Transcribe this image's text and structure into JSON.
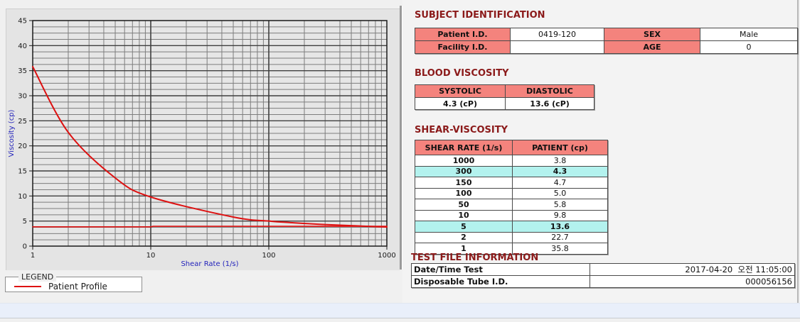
{
  "legend_box": {
    "title": "LEGEND",
    "series_label": "Patient Profile"
  },
  "sections": {
    "subject": {
      "title": "SUBJECT IDENTIFICATION",
      "cells": {
        "patient_label": "Patient I.D.",
        "patient_value": "0419-120",
        "facility_label": "Facility I.D.",
        "facility_value": "",
        "sex_label": "SEX",
        "sex_value": "Male",
        "age_label": "AGE",
        "age_value": "0"
      }
    },
    "blood": {
      "title": "BLOOD VISCOSITY",
      "systolic_label": "SYSTOLIC",
      "diastolic_label": "DIASTOLIC",
      "systolic_value": "4.3 (cP)",
      "diastolic_value": "13.6 (cP)"
    },
    "shear": {
      "title": "SHEAR-VISCOSITY",
      "col1": "SHEAR RATE (1/s)",
      "col2": "PATIENT (cp)",
      "rows": [
        {
          "rate": "1000",
          "patient": "3.8",
          "highlight": false
        },
        {
          "rate": "300",
          "patient": "4.3",
          "highlight": true
        },
        {
          "rate": "150",
          "patient": "4.7",
          "highlight": false
        },
        {
          "rate": "100",
          "patient": "5.0",
          "highlight": false
        },
        {
          "rate": "50",
          "patient": "5.8",
          "highlight": false
        },
        {
          "rate": "10",
          "patient": "9.8",
          "highlight": false
        },
        {
          "rate": "5",
          "patient": "13.6",
          "highlight": true
        },
        {
          "rate": "2",
          "patient": "22.7",
          "highlight": false
        },
        {
          "rate": "1",
          "patient": "35.8",
          "highlight": false
        }
      ]
    },
    "test_file": {
      "title": "TEST FILE INFORMATION",
      "rows": [
        {
          "label": "Date/Time Test",
          "value": "2017-04-20  오전 11:05:00"
        },
        {
          "label": "Disposable Tube I.D.",
          "value": "000056156"
        }
      ]
    }
  },
  "colors": {
    "curve_red": "#dd1111",
    "title_maroon": "#8b1a1a",
    "header_pink": "#f4837d",
    "highlight_cyan": "#b3f2ee",
    "axis_label_blue": "#2323bb"
  },
  "chart_data": {
    "type": "line",
    "xlabel": "Shear Rate (1/s)",
    "ylabel": "Viscosity (cp)",
    "x_scale": "log",
    "xlim": [
      1,
      1000
    ],
    "ylim": [
      0,
      45
    ],
    "x_ticks": [
      1,
      10,
      100,
      1000
    ],
    "y_tick_step": 5,
    "y_minor_step": 1.25,
    "grid": true,
    "legend_position": "bottom-left",
    "series": [
      {
        "name": "Patient Profile",
        "color": "#dd1111",
        "width": 2,
        "smooth": true,
        "x": [
          1,
          2,
          5,
          10,
          50,
          100,
          150,
          300,
          1000
        ],
        "y": [
          35.8,
          22.7,
          13.6,
          9.8,
          5.8,
          5.0,
          4.7,
          4.3,
          3.8
        ]
      },
      {
        "name": "asymptote-line",
        "color": "#dd1111",
        "width": 1.6,
        "smooth": false,
        "x": [
          1,
          10,
          10.5,
          1000
        ],
        "y": [
          3.85,
          3.85,
          3.95,
          3.95
        ]
      }
    ]
  }
}
